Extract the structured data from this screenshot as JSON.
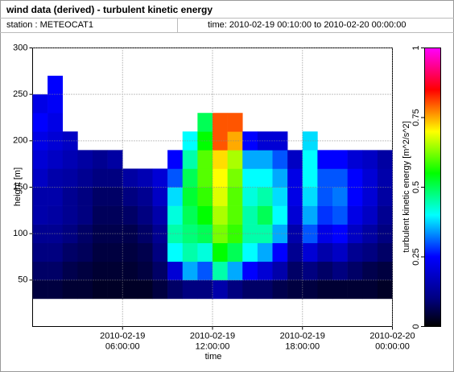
{
  "header": {
    "title": "wind data (derived) - turbulent kinetic energy",
    "station": "station : METEOCAT1",
    "time": "time: 2010-02-19 00:10:00 to 2010-02-20 00:00:00"
  },
  "chart_data": {
    "type": "heatmap",
    "x_label": "time",
    "y_label": "height [m]",
    "colorbar_label": "turbulent kinetic energy [m^2/s^2]",
    "xlim": [
      0,
      24
    ],
    "ylim": [
      0,
      300
    ],
    "xticks": [
      {
        "value": 6,
        "label": "2010-02-19\n06:00:00"
      },
      {
        "value": 12,
        "label": "2010-02-19\n12:00:00"
      },
      {
        "value": 18,
        "label": "2010-02-19\n18:00:00"
      },
      {
        "value": 24,
        "label": "2010-02-20\n00:00:00"
      }
    ],
    "yticks": [
      50,
      100,
      150,
      200,
      250,
      300
    ],
    "grid": true,
    "clim": [
      0,
      1
    ],
    "cticks": [
      0,
      0.25,
      0.5,
      0.75,
      1
    ],
    "colormap": [
      [
        0,
        "#000000"
      ],
      [
        0.1,
        "#000080"
      ],
      [
        0.25,
        "#0000ff"
      ],
      [
        0.4,
        "#00ffff"
      ],
      [
        0.55,
        "#00ff00"
      ],
      [
        0.7,
        "#ffff00"
      ],
      [
        0.85,
        "#ff0000"
      ],
      [
        1,
        "#ff00ff"
      ]
    ],
    "x_bins": [
      0,
      1,
      2,
      3,
      4,
      5,
      6,
      7,
      8,
      9,
      10,
      11,
      12,
      13,
      14,
      15,
      16,
      17,
      18,
      19,
      20,
      21,
      22,
      23,
      24
    ],
    "y_bins": [
      30,
      50,
      70,
      90,
      110,
      130,
      150,
      170,
      190,
      210,
      230,
      250,
      270
    ],
    "z": [
      [
        0.05,
        0.08,
        0.1,
        0.12,
        0.15,
        0.15,
        0.18,
        0.2,
        0.22,
        0.25,
        0.22
      ],
      [
        0.05,
        0.08,
        0.1,
        0.12,
        0.14,
        0.15,
        0.15,
        0.18,
        0.2,
        0.22,
        0.24,
        0.25
      ],
      [
        0.04,
        0.06,
        0.08,
        0.1,
        0.12,
        0.12,
        0.14,
        0.16,
        0.18
      ],
      [
        0.04,
        0.05,
        0.07,
        0.08,
        0.1,
        0.1,
        0.12,
        0.14
      ],
      [
        0.03,
        0.04,
        0.05,
        0.06,
        0.07,
        0.08,
        0.1,
        0.12
      ],
      [
        0.03,
        0.04,
        0.05,
        0.06,
        0.07,
        0.08,
        0.1,
        0.14
      ],
      [
        0.03,
        0.04,
        0.05,
        0.06,
        0.08,
        0.1,
        0.14
      ],
      [
        0.03,
        0.05,
        0.06,
        0.08,
        0.1,
        0.12,
        0.16
      ],
      [
        0.05,
        0.08,
        0.1,
        0.12,
        0.15,
        0.18,
        0.2
      ],
      [
        0.08,
        0.2,
        0.4,
        0.45,
        0.42,
        0.38,
        0.3,
        0.25
      ],
      [
        0.1,
        0.35,
        0.45,
        0.48,
        0.5,
        0.52,
        0.5,
        0.45,
        0.4
      ],
      [
        0.1,
        0.3,
        0.42,
        0.5,
        0.55,
        0.58,
        0.6,
        0.6,
        0.55,
        0.5
      ],
      [
        0.15,
        0.45,
        0.55,
        0.62,
        0.65,
        0.68,
        0.7,
        0.72,
        0.8,
        0.8
      ],
      [
        0.1,
        0.35,
        0.5,
        0.58,
        0.6,
        0.6,
        0.62,
        0.65,
        0.75,
        0.8
      ],
      [
        0.08,
        0.25,
        0.4,
        0.45,
        0.45,
        0.42,
        0.4,
        0.35,
        0.25
      ],
      [
        0.08,
        0.2,
        0.35,
        0.45,
        0.5,
        0.45,
        0.4,
        0.35,
        0.2
      ],
      [
        0.06,
        0.15,
        0.25,
        0.35,
        0.4,
        0.38,
        0.35,
        0.3,
        0.2
      ],
      [
        0.05,
        0.08,
        0.12,
        0.15,
        0.2,
        0.22,
        0.22,
        0.18
      ],
      [
        0.05,
        0.1,
        0.2,
        0.3,
        0.35,
        0.38,
        0.4,
        0.4,
        0.38
      ],
      [
        0.04,
        0.08,
        0.15,
        0.22,
        0.28,
        0.3,
        0.3,
        0.25
      ],
      [
        0.04,
        0.1,
        0.18,
        0.25,
        0.3,
        0.32,
        0.3,
        0.25
      ],
      [
        0.04,
        0.08,
        0.12,
        0.18,
        0.22,
        0.25,
        0.25,
        0.2
      ],
      [
        0.04,
        0.06,
        0.1,
        0.14,
        0.18,
        0.2,
        0.2,
        0.18
      ],
      [
        0.03,
        0.05,
        0.08,
        0.1,
        0.12,
        0.14,
        0.15,
        0.14
      ]
    ]
  }
}
